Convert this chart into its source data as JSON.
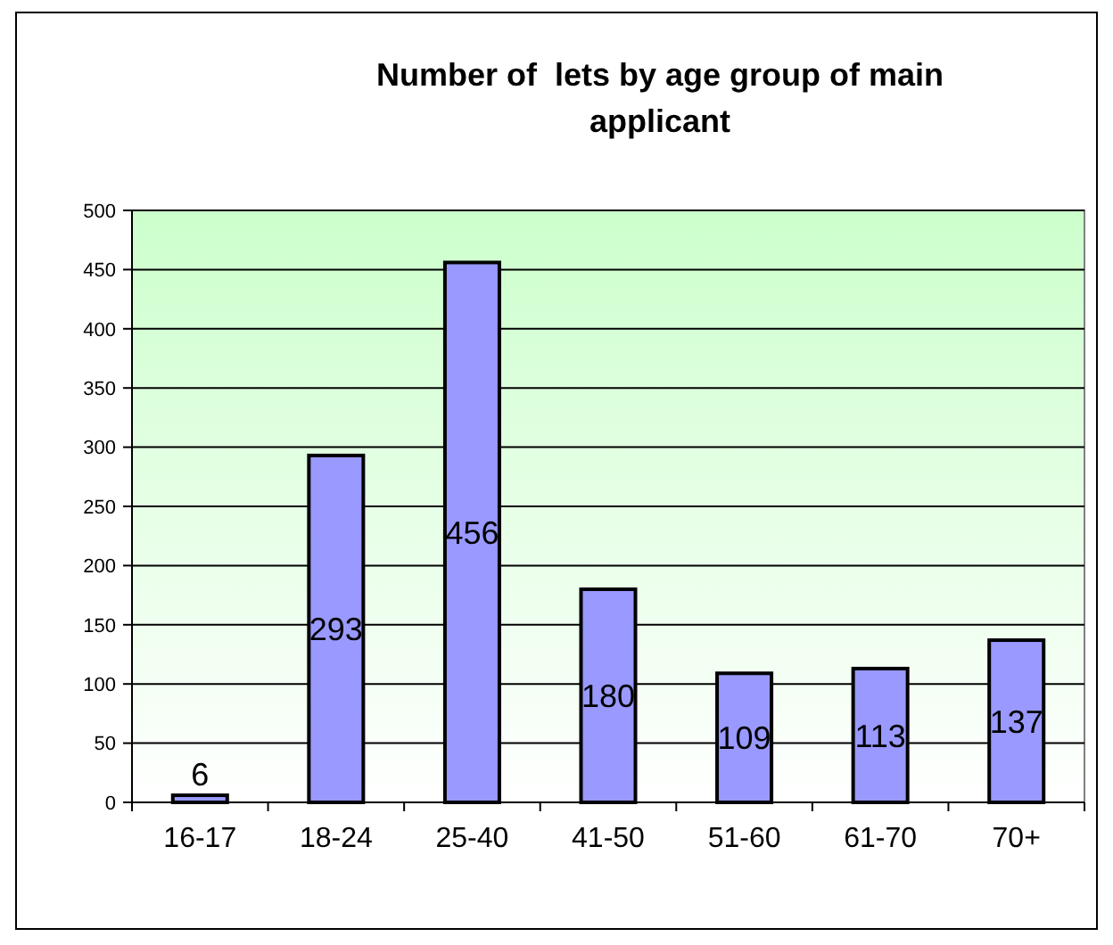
{
  "chart_data": {
    "type": "bar",
    "title": "Number of  lets by age group of main applicant",
    "categories": [
      "16-17",
      "18-24",
      "25-40",
      "41-50",
      "51-60",
      "61-70",
      "70+"
    ],
    "values": [
      6,
      293,
      456,
      180,
      109,
      113,
      137
    ],
    "color": "#9999ff",
    "ylim": [
      0,
      500
    ],
    "yticks": [
      0,
      50,
      100,
      150,
      200,
      250,
      300,
      350,
      400,
      450,
      500
    ],
    "grid": "y",
    "data_labels": true
  }
}
